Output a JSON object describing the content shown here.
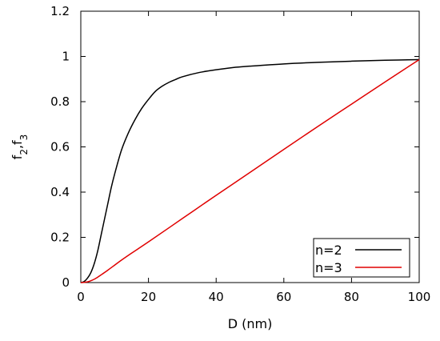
{
  "chart_data": {
    "type": "line",
    "xlabel": "D (nm)",
    "ylabel_base": "f",
    "ylabel_sub1": "2",
    "ylabel_sep": ",f",
    "ylabel_sub2": "3",
    "xlim": [
      0,
      100
    ],
    "ylim": [
      0,
      1.2
    ],
    "xticks": [
      0,
      20,
      40,
      60,
      80,
      100
    ],
    "yticks": [
      0,
      0.2,
      0.4,
      0.6,
      0.8,
      1,
      1.2
    ],
    "xtick_labels": [
      "0",
      "20",
      "40",
      "60",
      "80",
      "100"
    ],
    "ytick_labels": [
      "0",
      "0.2",
      "0.4",
      "0.6",
      "0.8",
      "1",
      "1.2"
    ],
    "grid": false,
    "legend_position": "bottom-right",
    "series": [
      {
        "name": "n=2",
        "color": "#000000",
        "x": [
          0,
          1,
          2,
          3,
          4,
          5,
          6,
          7,
          8,
          9,
          10,
          12,
          14,
          16,
          18,
          20,
          22,
          24,
          26,
          28,
          30,
          35,
          40,
          45,
          50,
          60,
          70,
          80,
          90,
          100
        ],
        "y": [
          0,
          0.005,
          0.02,
          0.045,
          0.085,
          0.14,
          0.21,
          0.28,
          0.35,
          0.42,
          0.48,
          0.585,
          0.66,
          0.72,
          0.77,
          0.81,
          0.845,
          0.868,
          0.885,
          0.898,
          0.91,
          0.929,
          0.941,
          0.951,
          0.957,
          0.967,
          0.974,
          0.979,
          0.983,
          0.986
        ]
      },
      {
        "name": "n=3",
        "color": "#e00000",
        "x": [
          0,
          1,
          2,
          3,
          4,
          5,
          6,
          8,
          10,
          12,
          15,
          20,
          30,
          40,
          50,
          60,
          70,
          80,
          90,
          100
        ],
        "y": [
          0,
          0.001,
          0.003,
          0.008,
          0.015,
          0.024,
          0.034,
          0.055,
          0.077,
          0.099,
          0.13,
          0.18,
          0.283,
          0.386,
          0.487,
          0.589,
          0.69,
          0.789,
          0.888,
          0.986
        ]
      }
    ]
  }
}
